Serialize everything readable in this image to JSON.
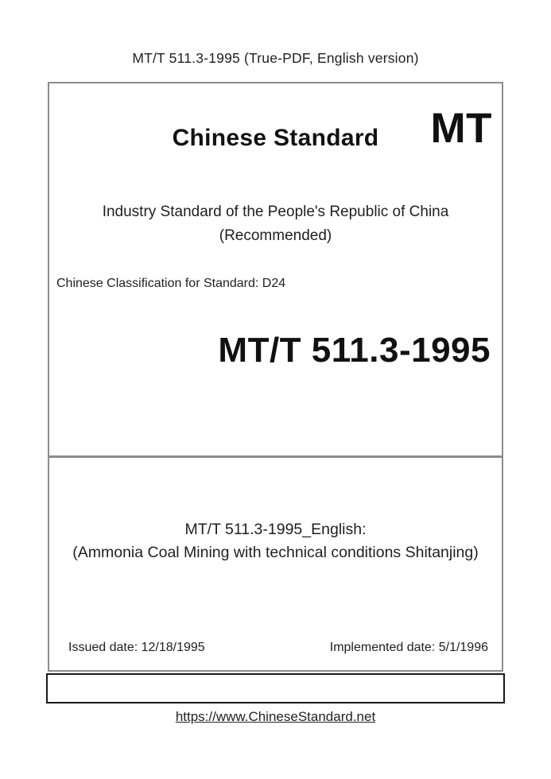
{
  "page": {
    "header_text": "MT/T 511.3-1995 (True-PDF, English version)",
    "footer_link": "https://www.ChineseStandard.net"
  },
  "cover": {
    "brand_title": "Chinese Standard",
    "brand_logo": "MT",
    "org_line1": "Industry Standard of the People's Republic of China",
    "org_line2": "(Recommended)",
    "classification": "Chinese Classification for Standard: D24",
    "standard_number": "MT/T 511.3-1995"
  },
  "details": {
    "english_title_line1": "MT/T 511.3-1995_English:",
    "english_title_line2": "(Ammonia Coal Mining with technical conditions Shitanjing)",
    "issued_date": "Issued date: 12/18/1995",
    "implemented_date": "Implemented date: 5/1/1996"
  },
  "colors": {
    "border_gray": "#8c8c8c",
    "border_black": "#1a1a1a",
    "text": "#1f1f1f"
  }
}
